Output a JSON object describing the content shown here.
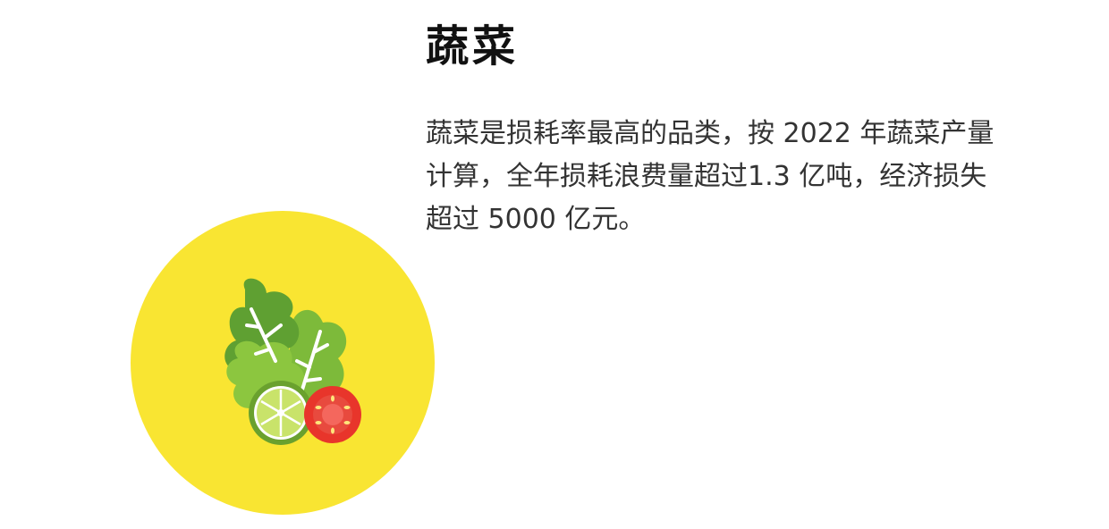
{
  "heading": {
    "title": "蔬菜"
  },
  "content": {
    "paragraph": "蔬菜是损耗率最高的品类，按 2022 年蔬菜产量计算，全年损耗浪费量超过1.3 亿吨，经济损失超过 5000 亿元。"
  },
  "colors": {
    "circle": "#F9E532",
    "leaf_dark": "#5FA032",
    "leaf_mid": "#6FB33B",
    "leaf_light": "#8CC63F",
    "lime_rind": "#6AA12E",
    "lime_flesh": "#C9E36A",
    "tomato": "#E8352B",
    "tomato_inner": "#F4675D",
    "seed": "#FFE57A"
  },
  "icons": [
    "vegetables-illustration",
    "lettuce-icon",
    "lime-slice-icon",
    "tomato-slice-icon"
  ]
}
